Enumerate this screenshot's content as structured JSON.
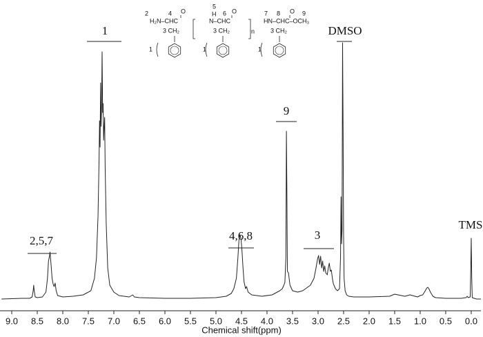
{
  "chart_data": {
    "type": "line",
    "x_label": "Chemical shift(ppm)",
    "xlim": [
      9.23,
      -0.19
    ],
    "ylim": [
      -17,
      433
    ],
    "xticks": [
      {
        "value": 9,
        "label": "9.0"
      },
      8.5,
      {
        "value": 8,
        "label": "8.0"
      },
      7.5,
      {
        "value": 7,
        "label": "7.0"
      },
      6.5,
      {
        "value": 6,
        "label": "6.0"
      },
      5.5,
      {
        "value": 5,
        "label": "5.0"
      },
      4.5,
      {
        "value": 4,
        "label": "4.0"
      },
      3.5,
      {
        "value": 3,
        "label": "3.0"
      },
      2.5,
      {
        "value": 2,
        "label": "2.0"
      },
      1.5,
      {
        "value": 1,
        "label": "1.0"
      },
      0.5,
      {
        "value": 0,
        "label": "0.0"
      }
    ],
    "color": "#222222",
    "x": [
      9.2,
      8.8,
      8.65,
      8.6,
      8.58,
      8.57,
      8.56,
      8.54,
      8.5,
      8.4,
      8.33,
      8.3,
      8.28,
      8.26,
      8.25,
      8.23,
      8.21,
      8.19,
      8.17,
      8.15,
      8.13,
      8.1,
      8.0,
      7.8,
      7.6,
      7.45,
      7.38,
      7.34,
      7.31,
      7.29,
      7.28,
      7.27,
      7.26,
      7.25,
      7.24,
      7.23,
      7.22,
      7.21,
      7.2,
      7.19,
      7.18,
      7.17,
      7.15,
      7.12,
      7.08,
      7.0,
      6.9,
      6.7,
      6.63,
      6.6,
      6.5,
      6.0,
      5.5,
      5.0,
      4.8,
      4.7,
      4.65,
      4.6,
      4.57,
      4.55,
      4.53,
      4.51,
      4.49,
      4.47,
      4.45,
      4.42,
      4.4,
      4.37,
      4.3,
      4.1,
      3.9,
      3.75,
      3.7,
      3.67,
      3.65,
      3.63,
      3.62,
      3.61,
      3.6,
      3.58,
      3.55,
      3.5,
      3.4,
      3.3,
      3.15,
      3.08,
      3.04,
      3.01,
      2.99,
      2.97,
      2.95,
      2.93,
      2.91,
      2.89,
      2.87,
      2.85,
      2.82,
      2.8,
      2.78,
      2.76,
      2.74,
      2.72,
      2.7,
      2.66,
      2.62,
      2.58,
      2.56,
      2.55,
      2.54,
      2.53,
      2.52,
      2.51,
      2.5,
      2.49,
      2.47,
      2.44,
      2.4,
      2.3,
      2.0,
      1.6,
      1.5,
      1.3,
      1.2,
      1.05,
      1.0,
      0.95,
      0.9,
      0.87,
      0.85,
      0.83,
      0.8,
      0.75,
      0.7,
      0.5,
      0.2,
      0.1,
      0.08,
      0.06,
      0.02,
      0.01,
      0.0,
      -0.01,
      -0.02,
      -0.1,
      -0.19
    ],
    "values": [
      0,
      1,
      1,
      3,
      12,
      20,
      12,
      3,
      2,
      3,
      10,
      30,
      55,
      62,
      68,
      50,
      30,
      22,
      18,
      23,
      12,
      5,
      3,
      4,
      6,
      12,
      30,
      60,
      120,
      200,
      258,
      220,
      313,
      250,
      280,
      358,
      270,
      283,
      230,
      250,
      263,
      190,
      110,
      45,
      20,
      10,
      5,
      3,
      6,
      3,
      2,
      1,
      1,
      2,
      4,
      8,
      15,
      30,
      60,
      85,
      93,
      88,
      70,
      45,
      25,
      15,
      18,
      10,
      6,
      4,
      6,
      12,
      15,
      20,
      24,
      60,
      243,
      150,
      40,
      38,
      20,
      12,
      10,
      12,
      20,
      30,
      45,
      58,
      63,
      50,
      62,
      45,
      55,
      40,
      48,
      38,
      35,
      45,
      52,
      40,
      42,
      30,
      22,
      15,
      12,
      15,
      60,
      148,
      80,
      100,
      371,
      250,
      90,
      30,
      12,
      6,
      4,
      3,
      3,
      4,
      7,
      4,
      6,
      3,
      5,
      6,
      12,
      16,
      17,
      15,
      10,
      4,
      2,
      1,
      1,
      2,
      4,
      2,
      3,
      40,
      88,
      30,
      2,
      0,
      0
    ],
    "annotations": [
      "1",
      "2,5,7",
      "4,6,8",
      "9",
      "3",
      "DMSO",
      "TMS"
    ]
  },
  "structure": {
    "labels": [
      "2",
      "4",
      "O",
      "H₂N–CHC",
      "3 CH₂",
      "1",
      "5",
      "H",
      "6",
      "O",
      "N–CHC",
      "3 CH₂",
      "n",
      "1",
      "7",
      "8",
      "O",
      "9",
      "HN–CHC–OCH₃",
      "3 CH₂",
      "1"
    ]
  }
}
